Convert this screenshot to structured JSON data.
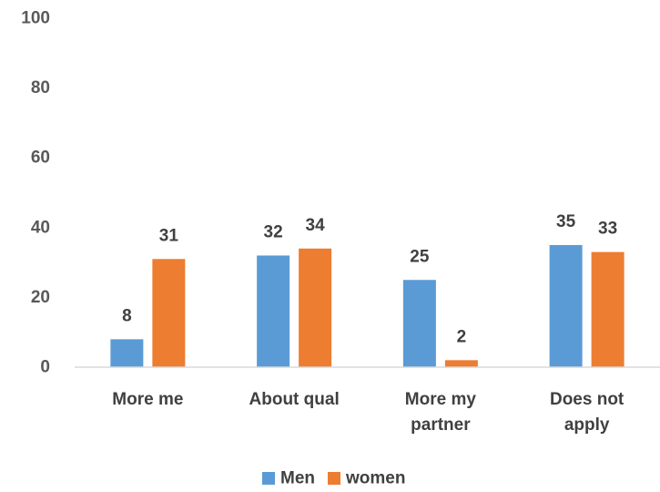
{
  "chart_data": {
    "type": "bar",
    "categories": [
      [
        "More me"
      ],
      [
        "About qual"
      ],
      [
        "More my",
        "partner"
      ],
      [
        "Does not",
        "apply"
      ]
    ],
    "series": [
      {
        "name": "Men",
        "values": [
          8,
          32,
          25,
          35
        ]
      },
      {
        "name": "women",
        "values": [
          31,
          34,
          2,
          33
        ]
      }
    ],
    "ylim": [
      0,
      100
    ],
    "yticks": [
      0,
      20,
      40,
      60,
      80,
      100
    ],
    "legend": "bottom",
    "grid": false
  },
  "colors": {
    "series": [
      "#5b9bd5",
      "#ed7d31"
    ],
    "axis": "#d9d9d9"
  }
}
